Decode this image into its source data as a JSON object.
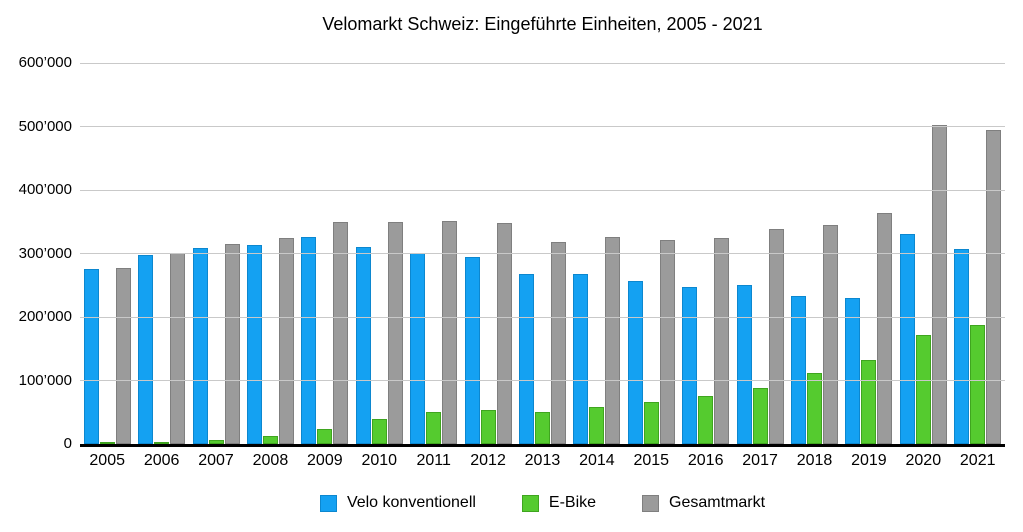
{
  "title": "Velomarkt Schweiz: Eingeführte Einheiten, 2005 - 2021",
  "chart_data": {
    "type": "bar",
    "title": "Velomarkt Schweiz: Eingeführte Einheiten, 2005 - 2021",
    "xlabel": "",
    "ylabel": "",
    "ylim": [
      0,
      600000
    ],
    "grid": "horizontal",
    "legend_position": "bottom",
    "number_format": "apostrophe-thousands",
    "categories": [
      "2005",
      "2006",
      "2007",
      "2008",
      "2009",
      "2010",
      "2011",
      "2012",
      "2013",
      "2014",
      "2015",
      "2016",
      "2017",
      "2018",
      "2019",
      "2020",
      "2021"
    ],
    "y_ticks": [
      {
        "label": "600’000",
        "value": 600000
      },
      {
        "label": "500’000",
        "value": 500000
      },
      {
        "label": "400’000",
        "value": 400000
      },
      {
        "label": "300’000",
        "value": 300000
      },
      {
        "label": "200’000",
        "value": 200000
      },
      {
        "label": "100’000",
        "value": 100000
      },
      {
        "label": "0",
        "value": 0
      }
    ],
    "series": [
      {
        "name": "Velo konventionell",
        "color": "#14a1f2",
        "edge_color": "#0c87cf",
        "values": [
          275000,
          297000,
          309000,
          313000,
          326000,
          311000,
          301000,
          295000,
          268000,
          268000,
          256000,
          248000,
          250000,
          233000,
          230000,
          331000,
          307000
        ]
      },
      {
        "name": "E-Bike",
        "color": "#55cb2f",
        "edge_color": "#3fa51f",
        "values": [
          2000,
          3000,
          6000,
          12000,
          24000,
          39000,
          50000,
          53000,
          50000,
          58000,
          66000,
          76000,
          88000,
          112000,
          133000,
          171000,
          187000
        ]
      },
      {
        "name": "Gesamtmarkt",
        "color": "#9b9b9b",
        "edge_color": "#7f7f7f",
        "values": [
          277000,
          300000,
          315000,
          325000,
          350000,
          350000,
          351000,
          348000,
          318000,
          326000,
          322000,
          324000,
          338000,
          345000,
          363000,
          502000,
          494000
        ]
      }
    ]
  },
  "colors": {
    "background": "#ffffff",
    "gridline": "#c9c9c9",
    "axis_line": "#000000",
    "text": "#000000"
  }
}
